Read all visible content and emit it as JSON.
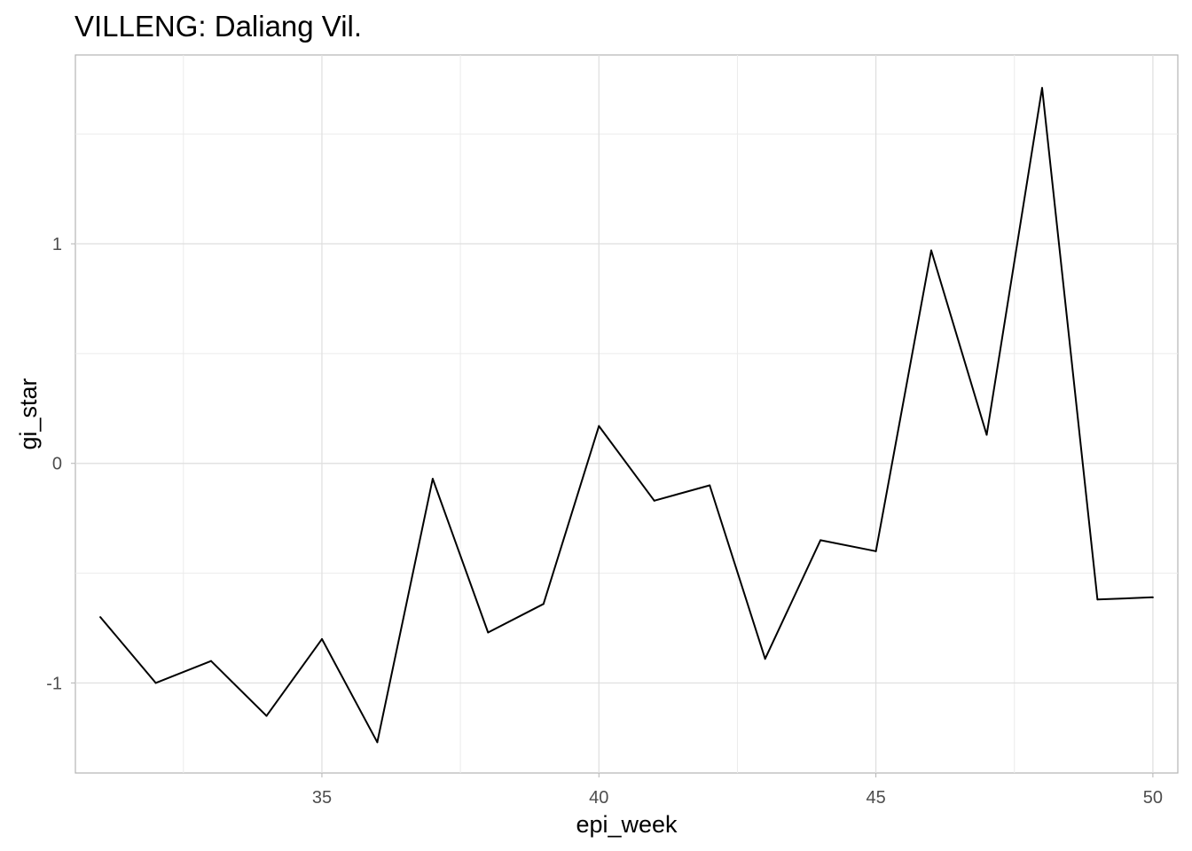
{
  "chart_data": {
    "type": "line",
    "title": "VILLENG: Daliang Vil.",
    "xlabel": "epi_week",
    "ylabel": "gi_star",
    "xlim": [
      30.55,
      50.45
    ],
    "ylim": [
      -1.41,
      1.86
    ],
    "x_ticks": [
      35,
      40,
      45,
      50
    ],
    "x_tick_labels": [
      "35",
      "40",
      "45",
      "50"
    ],
    "x_minor_ticks": [
      32.5,
      37.5,
      42.5,
      47.5
    ],
    "y_ticks": [
      -1,
      0,
      1
    ],
    "y_tick_labels": [
      "-1",
      "0",
      "1"
    ],
    "y_minor_ticks": [
      -0.5,
      0.5,
      1.5
    ],
    "grid": true,
    "series": [
      {
        "color": "#000000",
        "x": [
          31,
          32,
          33,
          34,
          35,
          36,
          37,
          38,
          39,
          40,
          41,
          42,
          43,
          44,
          45,
          46,
          47,
          48,
          49,
          50
        ],
        "y": [
          -0.7,
          -1.0,
          -0.9,
          -1.15,
          -0.8,
          -1.27,
          -0.07,
          -0.77,
          -0.64,
          0.17,
          -0.17,
          -0.1,
          -0.89,
          -0.35,
          -0.4,
          0.97,
          0.13,
          1.71,
          -0.62,
          -0.61
        ]
      }
    ]
  }
}
